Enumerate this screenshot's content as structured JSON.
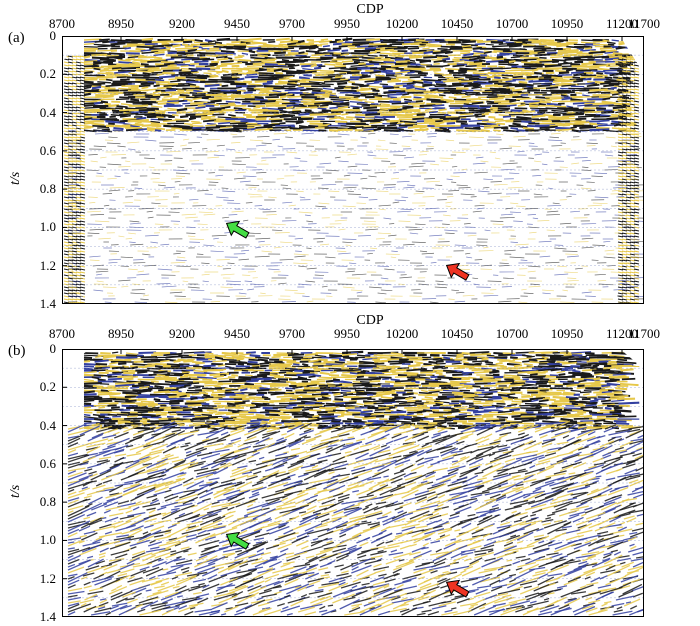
{
  "panels": [
    {
      "label": "(a)",
      "xaxis_title": "CDP",
      "yaxis_title": "t/s",
      "arrows": [
        {
          "color": "#44dd44",
          "name": "green-arrow",
          "cdp": 9450,
          "t": 1.01
        },
        {
          "color": "#ee3322",
          "name": "red-arrow",
          "cdp": 10450,
          "t": 1.23
        }
      ]
    },
    {
      "label": "(b)",
      "xaxis_title": "CDP",
      "yaxis_title": "t/s",
      "arrows": [
        {
          "color": "#44dd44",
          "name": "green-arrow",
          "cdp": 9450,
          "t": 1.0
        },
        {
          "color": "#ee3322",
          "name": "red-arrow",
          "cdp": 10450,
          "t": 1.25
        }
      ]
    }
  ],
  "chart_data": [
    {
      "type": "heatmap",
      "title": "",
      "xlabel": "CDP",
      "ylabel": "t/s",
      "xlim": [
        8700,
        11700
      ],
      "ylim": [
        0,
        1.4
      ],
      "x_ticks": [
        "8700",
        "8950",
        "9200",
        "9450",
        "9700",
        "9950",
        "10200",
        "10450",
        "10700",
        "10950",
        "11200",
        "11700"
      ],
      "y_ticks": [
        "0",
        "0.2",
        "0.4",
        "0.6",
        "0.8",
        "1.0",
        "1.2",
        "1.4"
      ],
      "colors": {
        "positive": "#e6c84a",
        "negative": "#1a1a1a",
        "trough": "#3340a0",
        "background": "#ffffff"
      }
    },
    {
      "type": "heatmap",
      "title": "",
      "xlabel": "CDP",
      "ylabel": "t/s",
      "xlim": [
        8700,
        11700
      ],
      "ylim": [
        0,
        1.4
      ],
      "x_ticks": [
        "8700",
        "8950",
        "9200",
        "9450",
        "9700",
        "9950",
        "10200",
        "10450",
        "10700",
        "10950",
        "11200",
        "11700"
      ],
      "y_ticks": [
        "0",
        "0.2",
        "0.4",
        "0.6",
        "0.8",
        "1.0",
        "1.2",
        "1.4"
      ],
      "colors": {
        "positive": "#e6c84a",
        "negative": "#1a1a1a",
        "trough": "#3340a0",
        "background": "#ffffff"
      }
    }
  ]
}
